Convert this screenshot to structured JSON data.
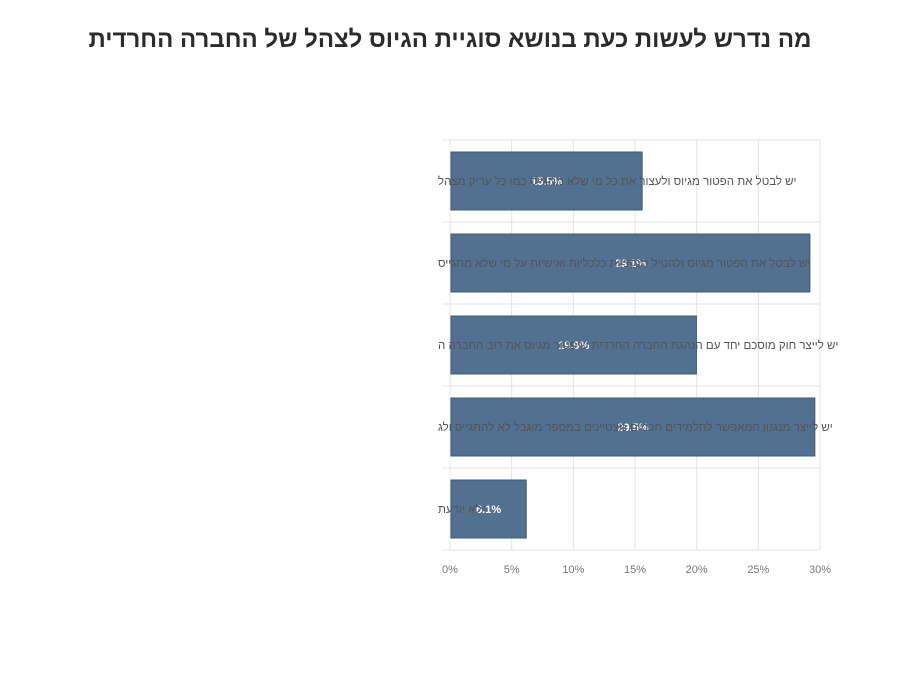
{
  "chart_data": {
    "type": "bar",
    "orientation": "horizontal",
    "title": "מה נדרש לעשות כעת בנושא סוגיית הגיוס לצהל של החברה החרדית",
    "categories": [
      "יש לבטל את הפטור מגיוס ולעצור את כל מי שלא מתגייס כמו כל עריק מצהל",
      "יש לבטל את הפטור מגיוס ולהטיל סנקציות כלכליות ואישיות על מי שלא מתגייס",
      "יש לייצר חוק מוסכם יחד עם הנהגת החברה החרדית שיפטור מגיוס את רוב החברה ה",
      "יש לייצר מנגנון המאפשר לתלמידים חכמים מצטיינים במספר מוגבל לא להתגייס ולג",
      "לא יודעת"
    ],
    "values": [
      15.5,
      29.1,
      19.9,
      29.5,
      6.1
    ],
    "data_labels": [
      "15.5%",
      "29.1%",
      "19.9%",
      "29.5%",
      "6.1%"
    ],
    "xlim": [
      0,
      30
    ],
    "xticks": [
      "0%",
      "5%",
      "10%",
      "15%",
      "20%",
      "25%",
      "30%"
    ],
    "xlabel": "",
    "ylabel": "",
    "grid": true,
    "bar_color": "#52708f"
  }
}
